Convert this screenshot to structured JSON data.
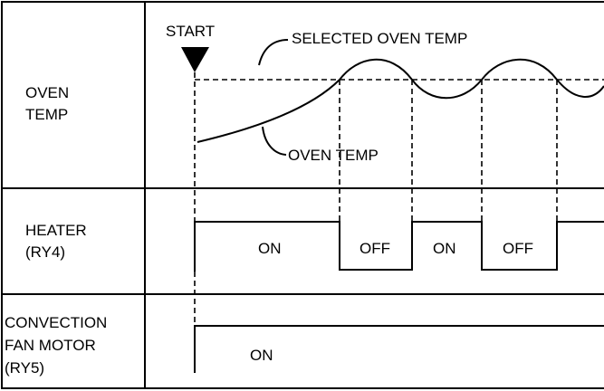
{
  "rows": [
    {
      "label": [
        "OVEN",
        "TEMP"
      ]
    },
    {
      "label": [
        "HEATER",
        "(RY4)"
      ],
      "states": [
        "ON",
        "OFF",
        "ON",
        "OFF"
      ]
    },
    {
      "label": [
        "CONVECTION",
        "FAN MOTOR",
        "(RY5)"
      ],
      "states": [
        "ON"
      ]
    }
  ],
  "annotations": {
    "start": "START",
    "selected": "SELECTED OVEN TEMP",
    "oven": "OVEN TEMP"
  }
}
